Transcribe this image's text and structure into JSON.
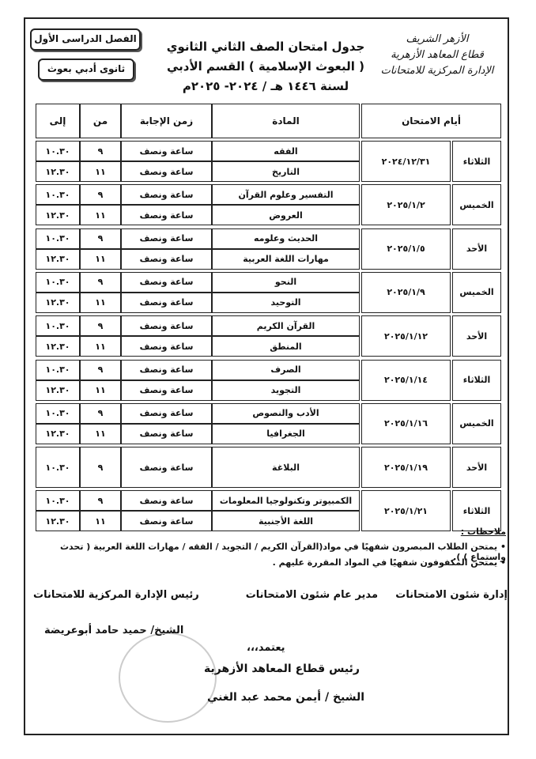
{
  "header": {
    "semester": "الفصل الدراسى الأول",
    "track": "ثانوى أدبي بعوث",
    "title": [
      "جدول امتحان الصف الثاني الثانوي",
      "( البعوث الإسلامية ) القسم الأدبي",
      "لسنة ١٤٤٦ هـ / ٢٠٢٤- ٢٠٢٥م"
    ],
    "logo": [
      "الأزهر الشريف",
      "قطاع المعاهد الأزهرية",
      "الإدارة المركزية للامتحانات"
    ]
  },
  "table": {
    "headers": {
      "days": "أيام الامتحان",
      "subject": "المادة",
      "duration": "زمن الإجابة",
      "from": "من",
      "to": "إلى"
    },
    "groups": [
      {
        "day": "الثلاثاء",
        "date": "٢٠٢٤/١٢/٣١",
        "rows": [
          {
            "subject": "الفقه",
            "duration": "ساعة ونصف",
            "from": "٩",
            "to": "١٠.٣٠"
          },
          {
            "subject": "التاريخ",
            "duration": "ساعة ونصف",
            "from": "١١",
            "to": "١٢.٣٠"
          }
        ]
      },
      {
        "day": "الخميس",
        "date": "٢٠٢٥/١/٢",
        "rows": [
          {
            "subject": "التفسير وعلوم القرآن",
            "duration": "ساعة ونصف",
            "from": "٩",
            "to": "١٠.٣٠"
          },
          {
            "subject": "العروض",
            "duration": "ساعة ونصف",
            "from": "١١",
            "to": "١٢.٣٠"
          }
        ]
      },
      {
        "day": "الأحد",
        "date": "٢٠٢٥/١/٥",
        "rows": [
          {
            "subject": "الحديث وعلومه",
            "duration": "ساعة ونصف",
            "from": "٩",
            "to": "١٠.٣٠"
          },
          {
            "subject": "مهارات اللغة العربية",
            "duration": "ساعة ونصف",
            "from": "١١",
            "to": "١٢.٣٠"
          }
        ]
      },
      {
        "day": "الخميس",
        "date": "٢٠٢٥/١/٩",
        "rows": [
          {
            "subject": "النحو",
            "duration": "ساعة ونصف",
            "from": "٩",
            "to": "١٠.٣٠"
          },
          {
            "subject": "التوحيد",
            "duration": "ساعة ونصف",
            "from": "١١",
            "to": "١٢.٣٠"
          }
        ]
      },
      {
        "day": "الأحد",
        "date": "٢٠٢٥/١/١٢",
        "rows": [
          {
            "subject": "القرآن الكريم",
            "duration": "ساعة ونصف",
            "from": "٩",
            "to": "١٠.٣٠"
          },
          {
            "subject": "المنطق",
            "duration": "ساعة ونصف",
            "from": "١١",
            "to": "١٢.٣٠"
          }
        ]
      },
      {
        "day": "الثلاثاء",
        "date": "٢٠٢٥/١/١٤",
        "rows": [
          {
            "subject": "الصرف",
            "duration": "ساعة ونصف",
            "from": "٩",
            "to": "١٠.٣٠"
          },
          {
            "subject": "التجويد",
            "duration": "ساعة ونصف",
            "from": "١١",
            "to": "١٢.٣٠"
          }
        ]
      },
      {
        "day": "الخميس",
        "date": "٢٠٢٥/١/١٦",
        "rows": [
          {
            "subject": "الأدب والنصوص",
            "duration": "ساعة ونصف",
            "from": "٩",
            "to": "١٠.٣٠"
          },
          {
            "subject": "الجغرافيا",
            "duration": "ساعة ونصف",
            "from": "١١",
            "to": "١٢.٣٠"
          }
        ]
      },
      {
        "day": "الأحد",
        "date": "٢٠٢٥/١/١٩",
        "rows": [
          {
            "subject": "البلاغة",
            "duration": "ساعة ونصف",
            "from": "٩",
            "to": "١٠.٣٠"
          }
        ]
      },
      {
        "day": "الثلاثاء",
        "date": "٢٠٢٥/١/٢١",
        "rows": [
          {
            "subject": "الكمبيوتر وتكنولوجيا المعلومات",
            "duration": "ساعة ونصف",
            "from": "٩",
            "to": "١٠.٣٠"
          },
          {
            "subject": "اللغة الأجنبية",
            "duration": "ساعة ونصف",
            "from": "١١",
            "to": "١٢.٣٠"
          }
        ]
      }
    ]
  },
  "notes": {
    "title": "ملاحظات :",
    "items": [
      "يمتحن الطلاب المبصرون شفهيًا في مواد(القرآن الكريم / التجويد / الفقه / مهارات اللغة العربية ( تحدث واستماع ) ).",
      "يمتحن المكفوفون شفهيًا في المواد المقررة عليهم ."
    ]
  },
  "signatures": {
    "exams_admin": "إدارة شئون الامتحانات",
    "general_manager": "مدير عام شئون الامتحانات",
    "central_head": "رئيس الإدارة المركزية للامتحانات",
    "central_head_name": "الشيخ/ حميد حامد أبوعريضة",
    "approved": "يعتمد،،،",
    "sector_head": "رئيس قطاع المعاهد الأزهرية",
    "sector_head_name": "الشيخ / أيمن محمد عبد الغني"
  }
}
